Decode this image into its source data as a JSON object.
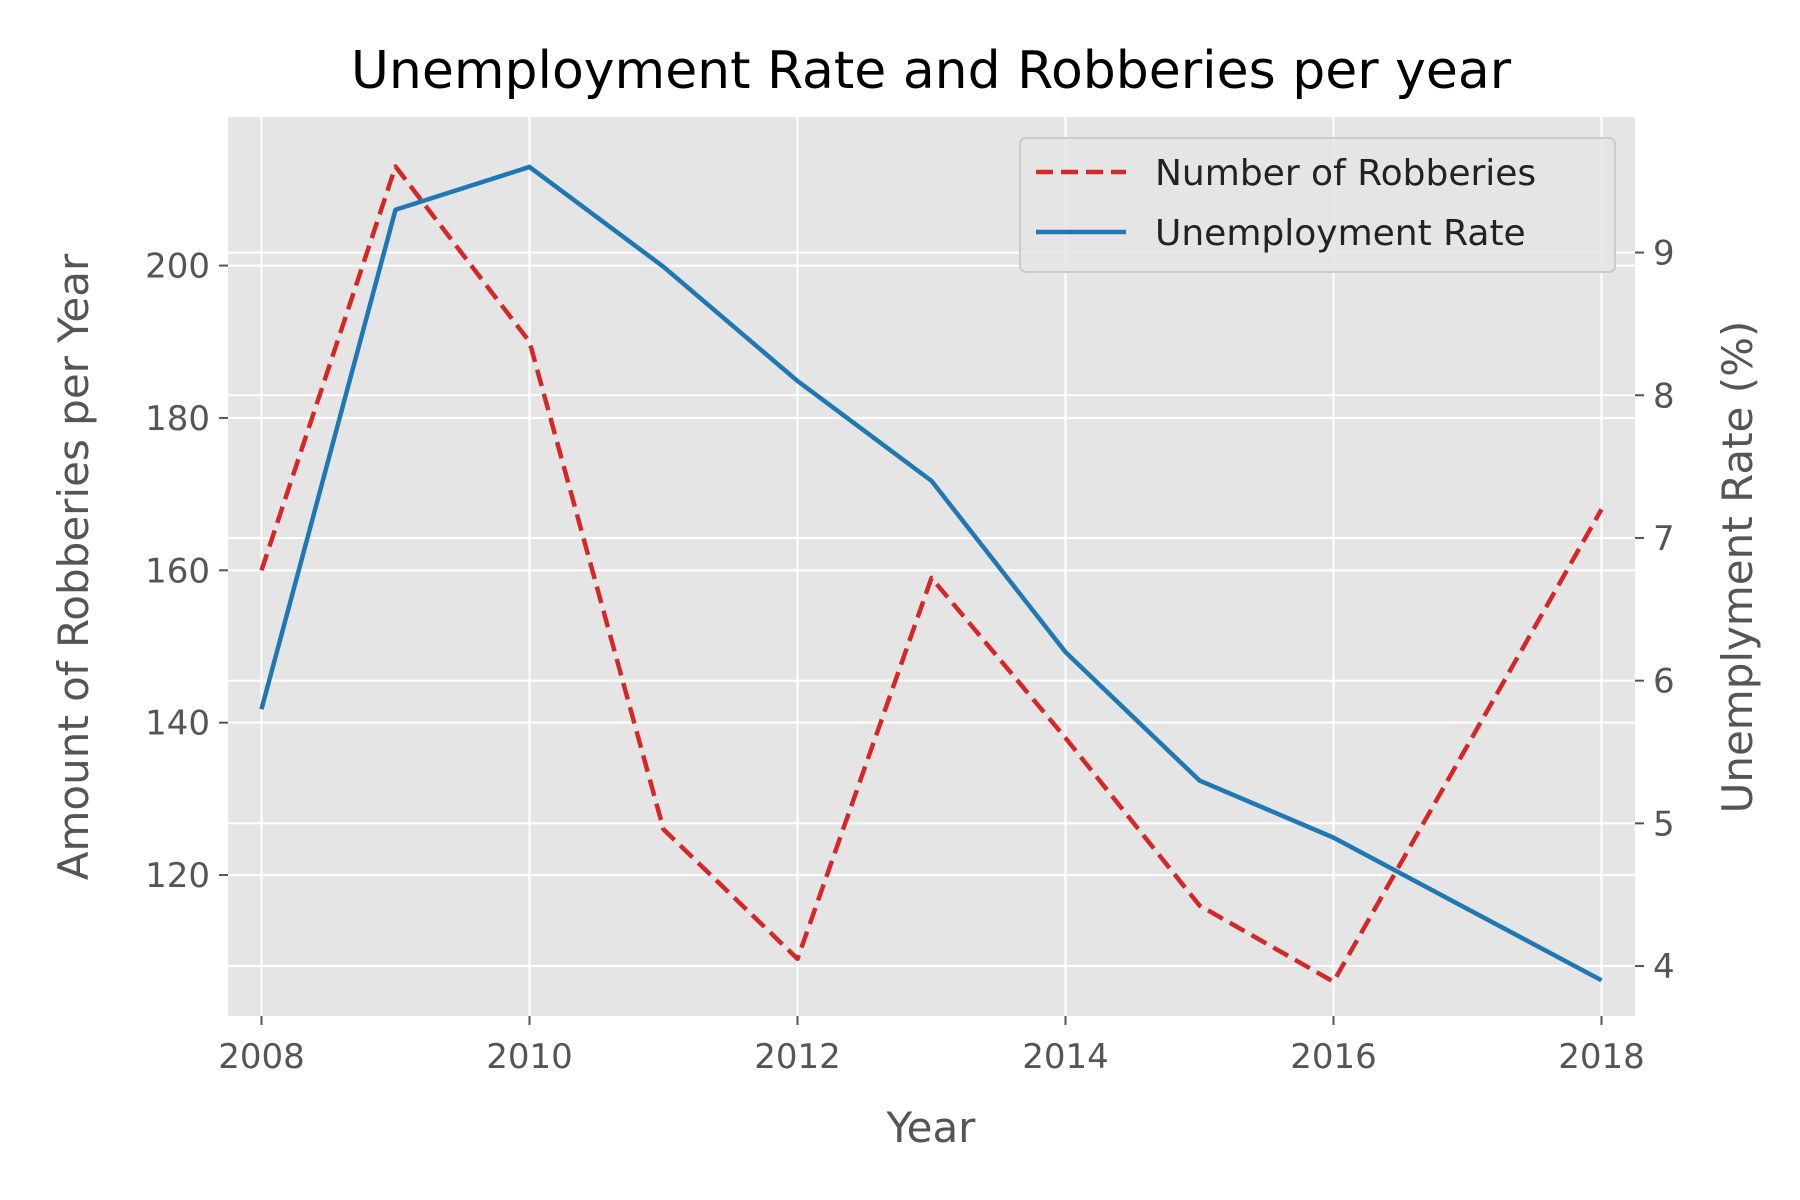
{
  "chart_data": {
    "type": "line",
    "title": "Unemployment Rate and Robberies per year",
    "xlabel": "Year",
    "ylabel": "Amount of Robberies per Year",
    "y2label": "Unemplyment Rate (%)",
    "x": [
      2008,
      2009,
      2010,
      2011,
      2012,
      2013,
      2014,
      2015,
      2016,
      2017,
      2018
    ],
    "x_ticks": [
      "2008",
      "2010",
      "2012",
      "2014",
      "2016",
      "2018"
    ],
    "xlim": [
      2007.75,
      2018.25
    ],
    "y_ticks": [
      "120",
      "140",
      "160",
      "180",
      "200"
    ],
    "ylim": [
      101.5,
      219.5
    ],
    "y2_ticks": [
      "4",
      "5",
      "6",
      "7",
      "8",
      "9"
    ],
    "y2lim": [
      3.65,
      9.95
    ],
    "grid": true,
    "legend_placement": "top-right",
    "series": [
      {
        "name": "Number of Robberies",
        "axis": "left",
        "style": "dashed",
        "color": "#d62728",
        "values": [
          160,
          213,
          190,
          126,
          109,
          159,
          138,
          116,
          106,
          137,
          168
        ]
      },
      {
        "name": "Unemployment Rate",
        "axis": "right",
        "style": "solid",
        "color": "#1f77b4",
        "values": [
          5.8,
          9.3,
          9.6,
          8.9,
          8.1,
          7.4,
          6.2,
          5.3,
          4.9,
          4.4,
          3.9
        ]
      }
    ],
    "colors": {
      "plot_background": "#e5e5e5",
      "grid": "#ffffff",
      "text": "#555555"
    }
  }
}
